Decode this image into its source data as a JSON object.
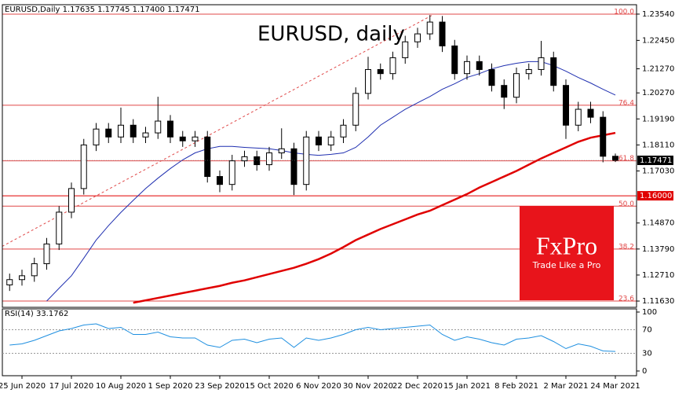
{
  "chart_data": {
    "type": "candlestick",
    "header": "EURUSD,Daily 1.17635 1.17745 1.17400 1.17471",
    "title": "EURUSD, daily",
    "categories": [
      null,
      "25 Jun 2020",
      null,
      null,
      null,
      "17 Jul 2020",
      null,
      null,
      null,
      "10 Aug 2020",
      null,
      null,
      null,
      "1 Sep 2020",
      null,
      null,
      null,
      "23 Sep 2020",
      null,
      null,
      null,
      "15 Oct 2020",
      null,
      null,
      null,
      "6 Nov 2020",
      null,
      null,
      null,
      "30 Nov 2020",
      null,
      null,
      null,
      "22 Dec 2020",
      null,
      null,
      null,
      "15 Jan 2021",
      null,
      null,
      null,
      "8 Feb 2021",
      null,
      null,
      null,
      "2 Mar 2021",
      null,
      null,
      null,
      "24 Mar 2021"
    ],
    "candles": [
      [
        1.123,
        1.1277,
        1.1205,
        1.1252
      ],
      [
        1.1252,
        1.1293,
        1.1227,
        1.1268
      ],
      [
        1.1268,
        1.1343,
        1.1243,
        1.1318
      ],
      [
        1.1318,
        1.1425,
        1.1293,
        1.14
      ],
      [
        1.14,
        1.1557,
        1.1375,
        1.1532
      ],
      [
        1.1532,
        1.1655,
        1.1507,
        1.163
      ],
      [
        1.163,
        1.1836,
        1.1605,
        1.1811
      ],
      [
        1.1811,
        1.1902,
        1.1786,
        1.1877
      ],
      [
        1.1877,
        1.1902,
        1.1819,
        1.1844
      ],
      [
        1.1844,
        1.1966,
        1.1819,
        1.1893
      ],
      [
        1.1893,
        1.1918,
        1.1819,
        1.1844
      ],
      [
        1.1844,
        1.1886,
        1.1819,
        1.1861
      ],
      [
        1.1861,
        1.2011,
        1.1836,
        1.191
      ],
      [
        1.191,
        1.1935,
        1.1819,
        1.1844
      ],
      [
        1.1844,
        1.1869,
        1.1803,
        1.1828
      ],
      [
        1.1828,
        1.1869,
        1.1803,
        1.1844
      ],
      [
        1.1844,
        1.1869,
        1.1655,
        1.168
      ],
      [
        1.168,
        1.1705,
        1.1615,
        1.1647
      ],
      [
        1.1647,
        1.177,
        1.1622,
        1.1745
      ],
      [
        1.1745,
        1.1787,
        1.172,
        1.1762
      ],
      [
        1.1762,
        1.1787,
        1.1704,
        1.1729
      ],
      [
        1.1729,
        1.1803,
        1.1704,
        1.1778
      ],
      [
        1.1778,
        1.188,
        1.1753,
        1.1795
      ],
      [
        1.1795,
        1.182,
        1.1603,
        1.1647
      ],
      [
        1.1647,
        1.1869,
        1.1622,
        1.1844
      ],
      [
        1.1844,
        1.1869,
        1.1786,
        1.1811
      ],
      [
        1.1811,
        1.1869,
        1.1786,
        1.1844
      ],
      [
        1.1844,
        1.1918,
        1.1819,
        1.1893
      ],
      [
        1.1893,
        1.205,
        1.1868,
        1.2025
      ],
      [
        1.2025,
        1.2177,
        1.2,
        1.2124
      ],
      [
        1.2124,
        1.2149,
        1.2082,
        1.2107
      ],
      [
        1.2107,
        1.2198,
        1.2082,
        1.2173
      ],
      [
        1.2173,
        1.2264,
        1.2148,
        1.2239
      ],
      [
        1.2239,
        1.2297,
        1.2214,
        1.2272
      ],
      [
        1.2272,
        1.235,
        1.2247,
        1.2321
      ],
      [
        1.2321,
        1.2346,
        1.2197,
        1.2222
      ],
      [
        1.2222,
        1.2247,
        1.2082,
        1.2107
      ],
      [
        1.2107,
        1.2182,
        1.2082,
        1.2157
      ],
      [
        1.2157,
        1.2182,
        1.2099,
        1.2124
      ],
      [
        1.2124,
        1.2149,
        1.2033,
        1.2058
      ],
      [
        1.2058,
        1.2083,
        1.196,
        1.2009
      ],
      [
        1.2009,
        1.2132,
        1.1984,
        1.2107
      ],
      [
        1.2107,
        1.2149,
        1.2082,
        1.2124
      ],
      [
        1.2124,
        1.2243,
        1.2099,
        1.2173
      ],
      [
        1.2173,
        1.2198,
        1.2033,
        1.2058
      ],
      [
        1.2058,
        1.2083,
        1.1836,
        1.1893
      ],
      [
        1.1893,
        1.199,
        1.1868,
        1.1959
      ],
      [
        1.1959,
        1.199,
        1.1901,
        1.1926
      ],
      [
        1.1926,
        1.1951,
        1.1739,
        1.1764
      ],
      [
        1.1764,
        1.1775,
        1.174,
        1.1747
      ]
    ],
    "series": [
      {
        "color": "#1f2fb0",
        "width": 1,
        "values": [
          null,
          null,
          null,
          1.1163,
          1.1216,
          1.1268,
          1.1341,
          1.1416,
          1.1476,
          1.1531,
          1.1581,
          1.163,
          1.1673,
          1.1713,
          1.1749,
          1.1778,
          1.1795,
          1.1805,
          1.1805,
          1.1801,
          1.1798,
          1.1795,
          1.1788,
          1.1778,
          1.1772,
          1.1768,
          1.1772,
          1.1778,
          1.1801,
          1.1844,
          1.1893,
          1.1926,
          1.1959,
          1.1986,
          1.2012,
          1.2042,
          1.2065,
          1.2091,
          1.2107,
          1.2127,
          1.214,
          1.215,
          1.2157,
          1.2157,
          1.214,
          1.2117,
          1.2091,
          1.2068,
          1.2042,
          1.2018
        ]
      },
      {
        "color": "#e00000",
        "width": 2.5,
        "values": [
          null,
          null,
          null,
          null,
          null,
          null,
          null,
          null,
          null,
          null,
          1.1156,
          1.1166,
          1.1176,
          1.1186,
          1.1196,
          1.1206,
          1.1216,
          1.1226,
          1.1239,
          1.1249,
          1.1262,
          1.1275,
          1.1288,
          1.1301,
          1.1318,
          1.1337,
          1.136,
          1.1387,
          1.1416,
          1.1439,
          1.1462,
          1.1482,
          1.1502,
          1.1522,
          1.1538,
          1.1561,
          1.1584,
          1.1607,
          1.1634,
          1.1657,
          1.168,
          1.1703,
          1.1729,
          1.1755,
          1.1778,
          1.1801,
          1.1824,
          1.1841,
          1.1851,
          1.1861
        ]
      }
    ],
    "ylim": [
      1.1137,
      1.2393
    ],
    "yticks": [
      {
        "value": 1.2354,
        "label": "1.23540"
      },
      {
        "value": 1.2245,
        "label": "1.22450"
      },
      {
        "value": 1.2127,
        "label": "1.21270"
      },
      {
        "value": 1.2027,
        "label": "1.20270"
      },
      {
        "value": 1.1919,
        "label": "1.19190"
      },
      {
        "value": 1.1811,
        "label": "1.18110"
      },
      {
        "value": 1.1703,
        "label": "1.17030"
      },
      {
        "value": 1.1487,
        "label": "1.14870"
      },
      {
        "value": 1.1379,
        "label": "1.13790"
      },
      {
        "value": 1.1271,
        "label": "1.12710"
      },
      {
        "value": 1.1163,
        "label": "1.11630"
      }
    ],
    "levels": [
      {
        "value": 1.2354,
        "label": "100.0"
      },
      {
        "value": 1.1976,
        "label": "76.4"
      },
      {
        "value": 1.1745,
        "label": "61.8"
      },
      {
        "value": 1.1557,
        "label": "50.0"
      },
      {
        "value": 1.1379,
        "label": "38.2"
      },
      {
        "value": 1.1163,
        "label": "23.6"
      }
    ],
    "level_color": "#e04848",
    "trendline": [
      [
        -0.6,
        1.139
      ],
      [
        34.2,
        1.235
      ]
    ],
    "marked_level": {
      "value": 1.16,
      "label": "1.16000",
      "color": "#e00000"
    },
    "last_price": {
      "value": 1.17471,
      "label": "1.17471"
    },
    "rsi": {
      "label": "RSI(14) 33.1762",
      "color": "#1e8fe0",
      "values": [
        44,
        46,
        52,
        60,
        68,
        72,
        78,
        80,
        72,
        74,
        62,
        62,
        66,
        58,
        56,
        56,
        44,
        40,
        52,
        54,
        48,
        54,
        56,
        40,
        56,
        52,
        56,
        62,
        70,
        74,
        70,
        72,
        74,
        76,
        78,
        62,
        52,
        58,
        54,
        48,
        44,
        54,
        56,
        60,
        50,
        38,
        46,
        42,
        34,
        33.1762
      ],
      "ylim": [
        0,
        100
      ],
      "yticks": [
        100,
        70,
        30,
        0
      ]
    },
    "logo": {
      "brand": "FxPro",
      "tagline": "Trade Like a Pro",
      "color": "#e8141b"
    }
  }
}
